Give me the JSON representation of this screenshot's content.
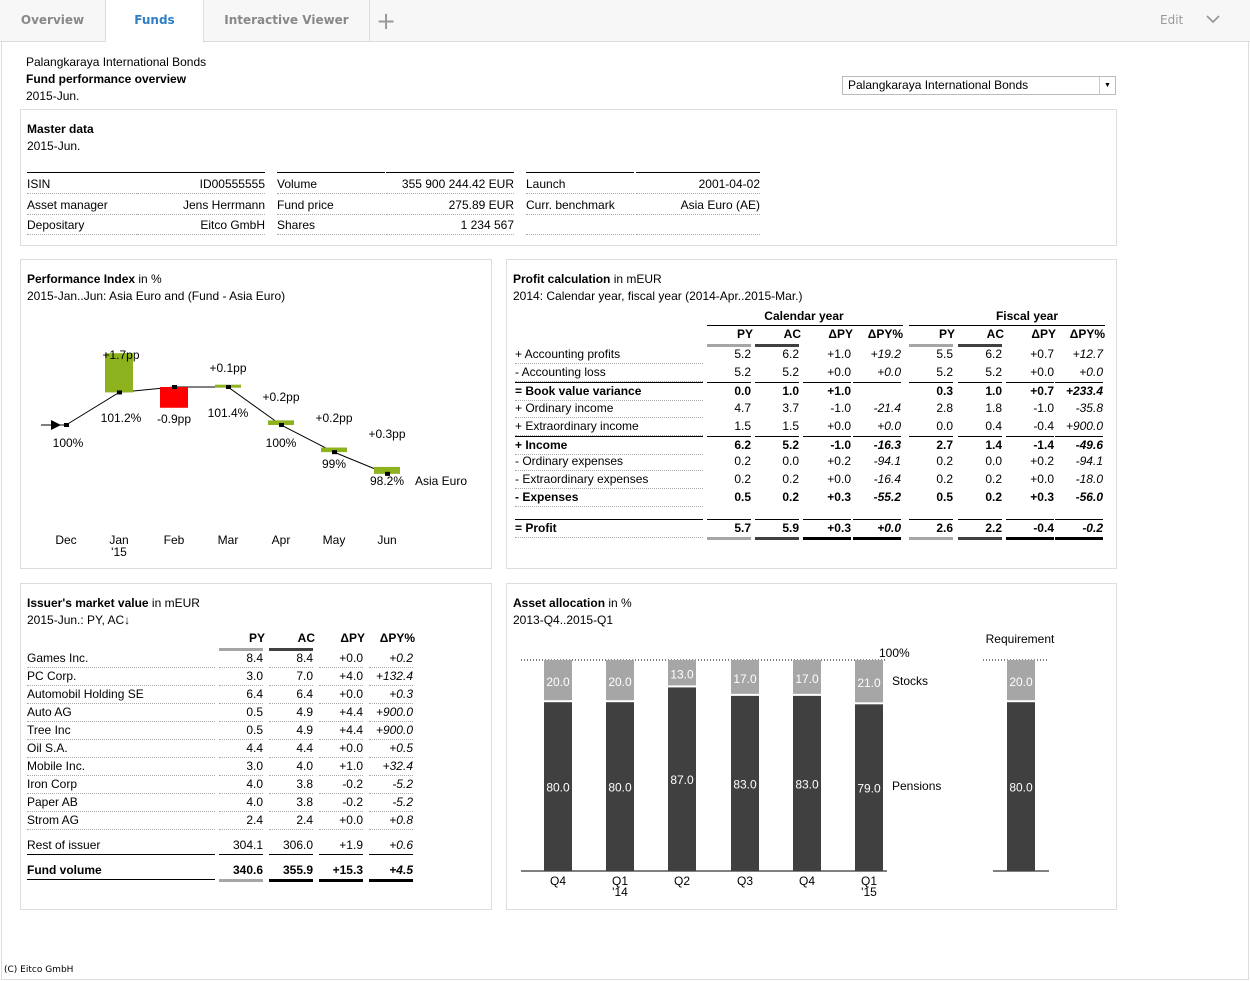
{
  "tabs": {
    "overview": "Overview",
    "funds": "Funds",
    "viewer": "Interactive Viewer",
    "plus": "+",
    "edit": "Edit"
  },
  "header": {
    "fund": "Palangkaraya International Bonds",
    "title": "Fund performance overview",
    "period": "2015-Jun."
  },
  "selector": {
    "value": "Palangkaraya International Bonds"
  },
  "master": {
    "title": "Master data",
    "period": "2015-Jun.",
    "col1": [
      [
        "ISIN",
        "ID00555555"
      ],
      [
        "Asset manager",
        "Jens Herrmann"
      ],
      [
        "Depositary",
        "Eitco GmbH"
      ]
    ],
    "col2": [
      [
        "Volume",
        "355 900 244.42 EUR"
      ],
      [
        "Fund price",
        "275.89 EUR"
      ],
      [
        "Shares",
        "1 234 567"
      ]
    ],
    "col3": [
      [
        "Launch",
        "2001-04-02"
      ],
      [
        "Curr. benchmark",
        "Asia Euro (AE)"
      ],
      [
        "",
        ""
      ]
    ]
  },
  "perf": {
    "title": "Performance Index",
    "unit": " in %",
    "subtitle": "2015-Jan..Jun: Asia Euro and (Fund - Asia Euro)",
    "months": [
      "Dec",
      "Jan",
      "Feb",
      "Mar",
      "Apr",
      "May",
      "Jun"
    ],
    "year_label": "'15",
    "series_label": "Asia Euro",
    "chart_data": {
      "type": "line",
      "x": [
        "Dec",
        "Jan",
        "Feb",
        "Mar",
        "Apr",
        "May",
        "Jun"
      ],
      "index": [
        100,
        101.2,
        101.4,
        101.4,
        100,
        99,
        98.2
      ],
      "index_labels": [
        "100%",
        "101.2%",
        "",
        "101.4%",
        "100%",
        "99%",
        "98.2%"
      ],
      "delta_pp": [
        null,
        1.7,
        -0.9,
        0.1,
        0.2,
        0.2,
        0.3
      ],
      "delta_labels": [
        "",
        "+1.7pp",
        "-0.9pp",
        "+0.1pp",
        "+0.2pp",
        "+0.2pp",
        "+0.3pp"
      ],
      "colors": {
        "pos": "#8cb21e",
        "neg": "#ff0000"
      }
    }
  },
  "profit": {
    "title": "Profit calculation",
    "unit": " in mEUR",
    "subtitle": "2014: Calendar year, fiscal year (2014-Apr..2015-Mar.)",
    "group1": "Calendar year",
    "group2": "Fiscal year",
    "cols": [
      "PY",
      "AC",
      "ΔPY",
      "ΔPY%",
      "PY",
      "AC",
      "ΔPY",
      "ΔPY%"
    ],
    "rows": [
      {
        "label": "+ Accounting profits",
        "v": [
          "5.2",
          "6.2",
          "+1.0",
          "+19.2",
          "5.5",
          "6.2",
          "+0.7",
          "+12.7"
        ],
        "bold": false
      },
      {
        "label": "-  Accounting loss",
        "v": [
          "5.2",
          "5.2",
          "+0.0",
          "+0.0",
          "5.2",
          "5.2",
          "+0.0",
          "+0.0"
        ],
        "bold": false
      },
      {
        "label": "= Book value variance",
        "v": [
          "0.0",
          "1.0",
          "+1.0",
          "",
          "0.3",
          "1.0",
          "+0.7",
          "+233.4"
        ],
        "bold": true
      },
      {
        "label": "+ Ordinary income",
        "v": [
          "4.7",
          "3.7",
          "-1.0",
          "-21.4",
          "2.8",
          "1.8",
          "-1.0",
          "-35.8"
        ],
        "bold": false
      },
      {
        "label": "+ Extraordinary income",
        "v": [
          "1.5",
          "1.5",
          "+0.0",
          "+0.0",
          "0.0",
          "0.4",
          "-0.4",
          "+900.0"
        ],
        "bold": false
      },
      {
        "label": "+ Income",
        "v": [
          "6.2",
          "5.2",
          "-1.0",
          "-16.3",
          "2.7",
          "1.4",
          "-1.4",
          "-49.6"
        ],
        "bold": true
      },
      {
        "label": "-  Ordinary expenses",
        "v": [
          "0.2",
          "0.0",
          "+0.2",
          "-94.1",
          "0.2",
          "0.0",
          "+0.2",
          "-94.1"
        ],
        "bold": false
      },
      {
        "label": "-  Extraordinary expenses",
        "v": [
          "0.2",
          "0.2",
          "+0.0",
          "-16.4",
          "0.2",
          "0.2",
          "+0.0",
          "-18.0"
        ],
        "bold": false
      },
      {
        "label": "-  Expenses",
        "v": [
          "0.5",
          "0.2",
          "+0.3",
          "-55.2",
          "0.5",
          "0.2",
          "+0.3",
          "-56.0"
        ],
        "bold": true
      },
      {
        "label": "= Profit",
        "v": [
          "5.7",
          "5.9",
          "+0.3",
          "+0.0",
          "2.6",
          "2.2",
          "-0.4",
          "-0.2"
        ],
        "bold": true
      }
    ]
  },
  "issuer": {
    "title": "Issuer's market value",
    "unit": " in mEUR",
    "subtitle": "2015-Jun.: PY, AC↓",
    "cols": [
      "PY",
      "AC",
      "ΔPY",
      "ΔPY%"
    ],
    "rows": [
      {
        "label": "Games Inc.",
        "v": [
          "8.4",
          "8.4",
          "+0.0",
          "+0.2"
        ]
      },
      {
        "label": "PC Corp.",
        "v": [
          "3.0",
          "7.0",
          "+4.0",
          "+132.4"
        ]
      },
      {
        "label": "Automobil Holding SE",
        "v": [
          "6.4",
          "6.4",
          "+0.0",
          "+0.3"
        ]
      },
      {
        "label": "Auto AG",
        "v": [
          "0.5",
          "4.9",
          "+4.4",
          "+900.0"
        ]
      },
      {
        "label": "Tree Inc",
        "v": [
          "0.5",
          "4.9",
          "+4.4",
          "+900.0"
        ]
      },
      {
        "label": "Oil S.A.",
        "v": [
          "4.4",
          "4.4",
          "+0.0",
          "+0.5"
        ]
      },
      {
        "label": "Mobile Inc.",
        "v": [
          "3.0",
          "4.0",
          "+1.0",
          "+32.4"
        ]
      },
      {
        "label": "Iron Corp",
        "v": [
          "4.0",
          "3.8",
          "-0.2",
          "-5.2"
        ]
      },
      {
        "label": "Paper AB",
        "v": [
          "4.0",
          "3.8",
          "-0.2",
          "-5.2"
        ]
      },
      {
        "label": "Strom AG",
        "v": [
          "2.4",
          "2.4",
          "+0.0",
          "+0.8"
        ]
      }
    ],
    "rest": {
      "label": "Rest of issuer",
      "v": [
        "304.1",
        "306.0",
        "+1.9",
        "+0.6"
      ]
    },
    "total": {
      "label": "Fund volume",
      "v": [
        "340.6",
        "355.9",
        "+15.3",
        "+4.5"
      ]
    }
  },
  "asset": {
    "title": "Asset allocation",
    "unit": " in %",
    "subtitle": "2013-Q4..2015-Q1",
    "hundred": "100%",
    "requirement": "Requirement",
    "chart_data": {
      "type": "bar",
      "stacked": true,
      "categories": [
        "Q4",
        "Q1",
        "Q2",
        "Q3",
        "Q4",
        "Q1"
      ],
      "category_sublabels": [
        "",
        "'14",
        "",
        "",
        "",
        "'15"
      ],
      "series": [
        {
          "name": "Pensions",
          "values": [
            80.0,
            80.0,
            87.0,
            83.0,
            83.0,
            79.0
          ],
          "color": "#404040"
        },
        {
          "name": "Stocks",
          "values": [
            20.0,
            20.0,
            13.0,
            17.0,
            17.0,
            21.0
          ],
          "color": "#a6a6a6"
        }
      ],
      "requirement": {
        "Pensions": 80.0,
        "Stocks": 20.0
      },
      "ylim": [
        0,
        100
      ]
    }
  },
  "footer": "(C) Eitco GmbH"
}
